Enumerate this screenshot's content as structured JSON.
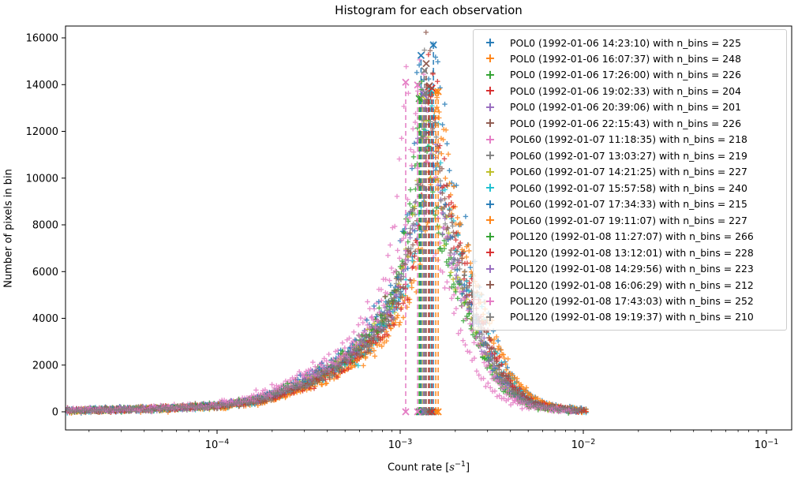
{
  "figure": {
    "title": "Histogram for each observation",
    "background": "#ffffff"
  },
  "axes": {
    "ylabel": "Number of pixels in bin",
    "xlabel": {
      "pre": "Count rate [",
      "var": "s",
      "sup": "−1",
      "post": "]"
    },
    "x_scale": "log",
    "x_major_ticks": [
      {
        "value": 0.0001,
        "base": "10",
        "exp": "−4"
      },
      {
        "value": 0.001,
        "base": "10",
        "exp": "−3"
      },
      {
        "value": 0.01,
        "base": "10",
        "exp": "−2"
      },
      {
        "value": 0.1,
        "base": "10",
        "exp": "−1"
      }
    ],
    "y_ticks": [
      0,
      2000,
      4000,
      6000,
      8000,
      10000,
      12000,
      14000,
      16000
    ],
    "xlim": [
      1.49e-05,
      0.1374
    ],
    "ylim": [
      -776,
      16506
    ],
    "spine_color": "#000000",
    "tick_color": "#000000"
  },
  "chart_data": {
    "type": "scatter",
    "marker": "+",
    "marker_opacity": 0.8,
    "mode_line_style": "dashed",
    "mode_marker": "x",
    "x_start": 1.5e-05,
    "shape_profile": {
      "comment_log10x": [
        -4.9,
        -4.6,
        -4.3,
        -4.0,
        -3.8,
        -3.66,
        -3.5,
        -3.35,
        -3.2,
        -3.1,
        -3.0,
        -2.94,
        -2.9,
        -2.873,
        -2.853,
        -2.83,
        -2.79,
        -2.74,
        -2.7,
        -2.62,
        -2.53,
        -2.45,
        -2.37,
        -2.3,
        -2.22,
        -2.13,
        -2.05,
        -2.0
      ],
      "rel": [
        0.003,
        0.006,
        0.01,
        0.018,
        0.032,
        0.055,
        0.09,
        0.135,
        0.195,
        0.26,
        0.37,
        0.5,
        0.65,
        0.83,
        1.0,
        0.92,
        0.74,
        0.58,
        0.5,
        0.355,
        0.215,
        0.115,
        0.06,
        0.034,
        0.018,
        0.009,
        0.005,
        0.004
      ],
      "mode_log10x": -2.853
    },
    "series": [
      {
        "label": "POL0 (1992-01-06 14:23:10) with n_bins = 225",
        "color": "#1f77b4",
        "n_bins": 225,
        "mode_count_rate": 0.001518,
        "peak_pixels": 15700
      },
      {
        "label": "POL0 (1992-01-06 16:07:37) with n_bins = 248",
        "color": "#ff7f0e",
        "n_bins": 248,
        "mode_count_rate": 0.001564,
        "peak_pixels": 13700
      },
      {
        "label": "POL0 (1992-01-06 17:26:00) with n_bins = 226",
        "color": "#2ca02c",
        "n_bins": 226,
        "mode_count_rate": 0.001285,
        "peak_pixels": 13450
      },
      {
        "label": "POL0 (1992-01-06 19:02:33) with n_bins = 204",
        "color": "#d62728",
        "n_bins": 204,
        "mode_count_rate": 0.00143,
        "peak_pixels": 13900
      },
      {
        "label": "POL0 (1992-01-06 20:39:06) with n_bins = 201",
        "color": "#9467bd",
        "n_bins": 201,
        "mode_count_rate": 0.001347,
        "peak_pixels": 13550
      },
      {
        "label": "POL0 (1992-01-06 22:15:43) with n_bins = 226",
        "color": "#8c564b",
        "n_bins": 226,
        "mode_count_rate": 0.001388,
        "peak_pixels": 14900
      },
      {
        "label": "POL60 (1992-01-07 11:18:35) with n_bins = 218",
        "color": "#e377c2",
        "n_bins": 218,
        "mode_count_rate": 0.001072,
        "peak_pixels": 14100
      },
      {
        "label": "POL60 (1992-01-07 13:03:27) with n_bins = 219",
        "color": "#7f7f7f",
        "n_bins": 219,
        "mode_count_rate": 0.001357,
        "peak_pixels": 14600
      },
      {
        "label": "POL60 (1992-01-07 14:21:25) with n_bins = 227",
        "color": "#bcbd22",
        "n_bins": 227,
        "mode_count_rate": 0.00132,
        "peak_pixels": 13500
      },
      {
        "label": "POL60 (1992-01-07 15:57:58) with n_bins = 240",
        "color": "#17becf",
        "n_bins": 240,
        "mode_count_rate": 0.001473,
        "peak_pixels": 13750
      },
      {
        "label": "POL60 (1992-01-07 17:34:33) with n_bins = 215",
        "color": "#1f77b4",
        "n_bins": 215,
        "mode_count_rate": 0.0013,
        "peak_pixels": 15250
      },
      {
        "label": "POL60 (1992-01-07 19:11:07) with n_bins = 227",
        "color": "#ff7f0e",
        "n_bins": 227,
        "mode_count_rate": 0.001612,
        "peak_pixels": 13700
      },
      {
        "label": "POL120 (1992-01-08 11:27:07) with n_bins = 266",
        "color": "#2ca02c",
        "n_bins": 266,
        "mode_count_rate": 0.00127,
        "peak_pixels": 13400
      },
      {
        "label": "POL120 (1992-01-08 13:12:01) with n_bins = 228",
        "color": "#d62728",
        "n_bins": 228,
        "mode_count_rate": 0.00149,
        "peak_pixels": 13850
      },
      {
        "label": "POL120 (1992-01-08 14:29:56) with n_bins = 223",
        "color": "#9467bd",
        "n_bins": 223,
        "mode_count_rate": 0.00134,
        "peak_pixels": 13600
      },
      {
        "label": "POL120 (1992-01-08 16:06:29) with n_bins = 212",
        "color": "#8c564b",
        "n_bins": 212,
        "mode_count_rate": 0.001445,
        "peak_pixels": 13950
      },
      {
        "label": "POL120 (1992-01-08 17:43:03) with n_bins = 252",
        "color": "#e377c2",
        "n_bins": 252,
        "mode_count_rate": 0.001245,
        "peak_pixels": 13980
      },
      {
        "label": "POL120 (1992-01-08 19:19:37) with n_bins = 210",
        "color": "#7f7f7f",
        "n_bins": 210,
        "mode_count_rate": 0.00137,
        "peak_pixels": 13650
      }
    ]
  },
  "legend": {
    "position": "upper right",
    "marker_glyph": "+"
  }
}
